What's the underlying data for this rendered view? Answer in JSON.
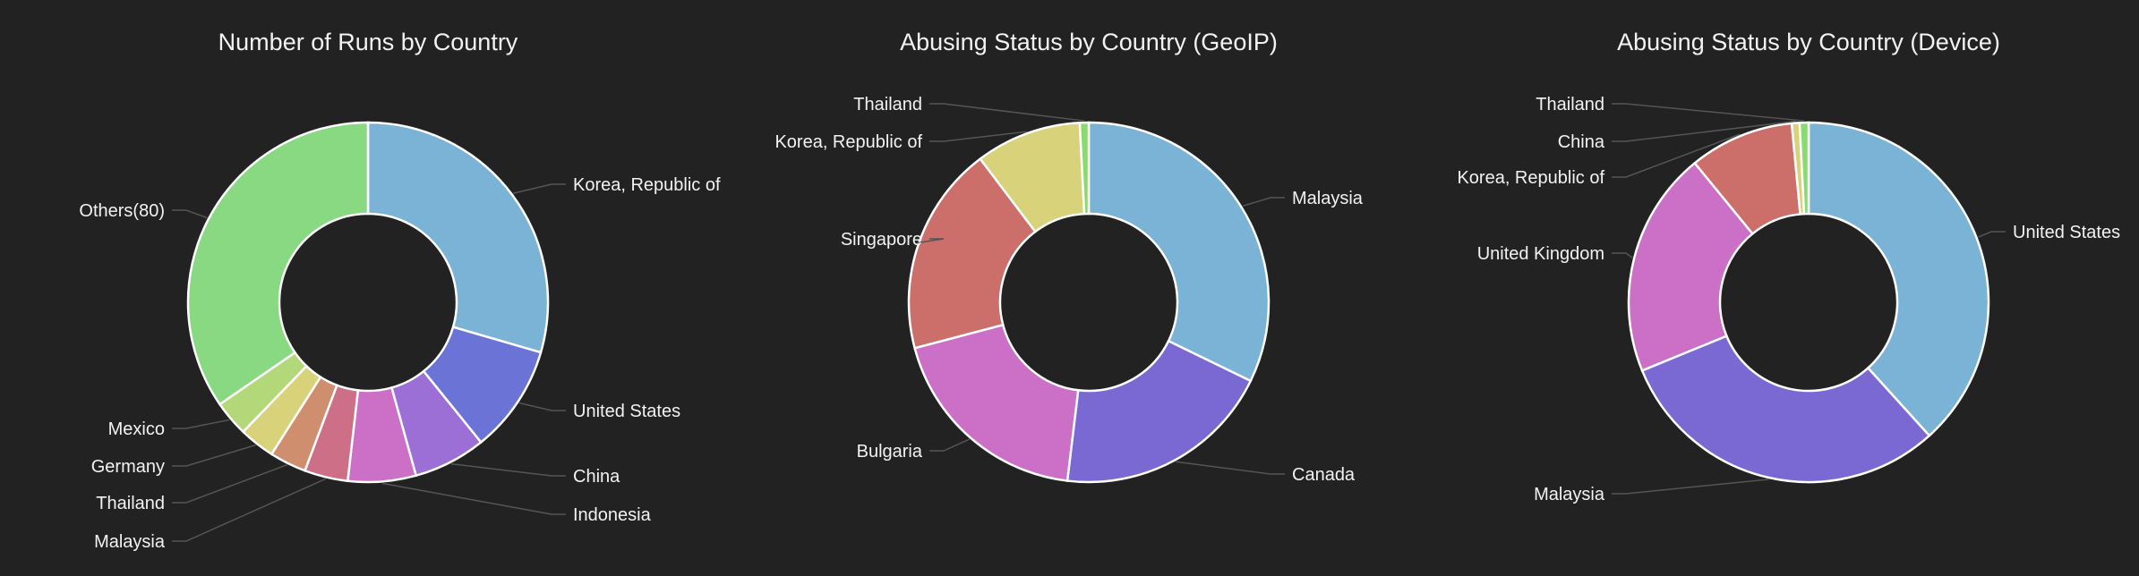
{
  "chart_data": [
    {
      "type": "pie",
      "donut": true,
      "title": "Number of Runs by Country",
      "unit": "percent (estimated)",
      "categories": [
        "Korea, Republic of",
        "United States",
        "China",
        "Indonesia",
        "Malaysia",
        "Thailand",
        "Germany",
        "Mexico",
        "Others(80)"
      ],
      "values": [
        29.5,
        9.7,
        6.5,
        6.1,
        3.9,
        3.3,
        3.2,
        3.2,
        34.6
      ],
      "colors": [
        "#7bb3d7",
        "#6b74d6",
        "#9b6fd6",
        "#cc6fc6",
        "#cc6f87",
        "#cf8f6f",
        "#d8d27a",
        "#b3d87a",
        "#88d982"
      ]
    },
    {
      "type": "pie",
      "donut": true,
      "title": "Abusing Status by Country (GeoIP)",
      "unit": "percent (estimated)",
      "categories": [
        "Malaysia",
        "Canada",
        "Bulgaria",
        "Singapore",
        "Korea, Republic of",
        "Thailand"
      ],
      "values": [
        32.2,
        19.7,
        19.0,
        18.8,
        9.5,
        0.8
      ],
      "colors": [
        "#7bb3d7",
        "#7b69d3",
        "#cc6fc6",
        "#cc6f6b",
        "#d8d27a",
        "#8ad972"
      ]
    },
    {
      "type": "pie",
      "donut": true,
      "title": "Abusing Status by Country (Device)",
      "unit": "percent (estimated)",
      "categories": [
        "United States",
        "Malaysia",
        "United Kingdom",
        "Korea, Republic of",
        "China",
        "Thailand"
      ],
      "values": [
        38.3,
        30.5,
        20.3,
        9.4,
        0.7,
        0.8
      ],
      "colors": [
        "#7bb3d7",
        "#7b69d3",
        "#cc6fc6",
        "#cc6f6b",
        "#d8d27a",
        "#8ad972"
      ]
    }
  ]
}
